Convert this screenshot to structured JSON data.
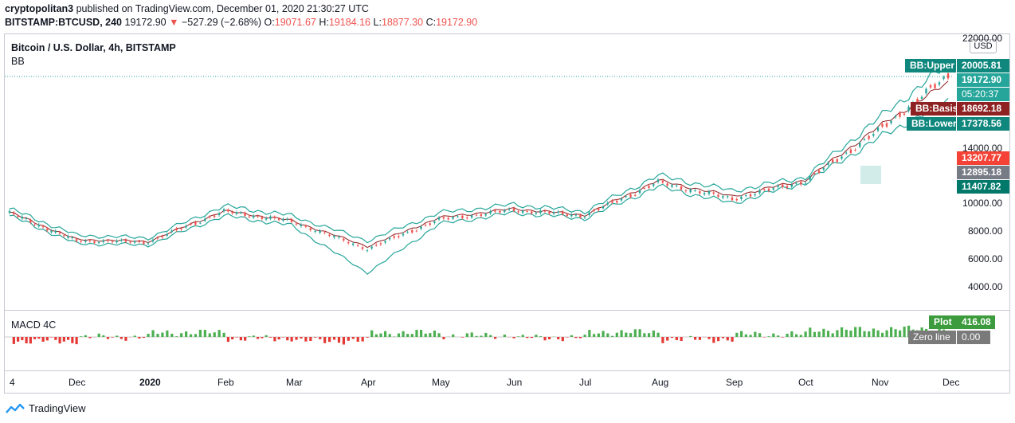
{
  "header": {
    "publisher": "cryptopolitan3",
    "published_text": "published on TradingView.com, December 01, 2020 21:30:27 UTC",
    "symbol": "BITSTAMP:BTCUSD, 240",
    "last_price": "19172.90",
    "change": "−527.29 (−2.68%)",
    "o_label": "O:",
    "o_value": "19071.67",
    "h_label": "H:",
    "h_value": "19184.16",
    "l_label": "L:",
    "l_value": "18877.30",
    "c_label": "C:",
    "c_value": "19172.90"
  },
  "legend": {
    "title": "Bitcoin / U.S. Dollar, 4h, BITSTAMP",
    "bb": "BB",
    "macd": "MACD 4C"
  },
  "price_axis": {
    "currency": "USD",
    "ticks": [
      "4000.00",
      "6000.00",
      "8000.00",
      "10000.00",
      "14000.00",
      "22000.00"
    ]
  },
  "tags": {
    "bb_upper_label": "BB:Upper",
    "bb_upper_value": "20005.81",
    "price_value": "19172.90",
    "countdown": "05:20:37",
    "bb_basis_label": "BB:Basis",
    "bb_basis_value": "18692.18",
    "bb_lower_label": "BB:Lower",
    "bb_lower_value": "17378.56",
    "level_high": "13207.77",
    "level_mid": "12895.18",
    "level_low": "11407.82",
    "plot_label": "Plot",
    "plot_value": "416.08",
    "zero_label": "Zero line",
    "zero_value": "0.00"
  },
  "time_axis": {
    "labels": [
      "4",
      "Dec",
      "2020",
      "Feb",
      "Mar",
      "Apr",
      "May",
      "Jun",
      "Jul",
      "Aug",
      "Sep",
      "Oct",
      "Nov",
      "Dec"
    ]
  },
  "footer": {
    "brand": "TradingView"
  },
  "colors": {
    "bb_band": "#26a69a",
    "bb_tag": "#0f877d",
    "basis": "#8e2222",
    "price_tag": "#26a69a",
    "down": "#ef5350",
    "up": "#26a69a",
    "level_red": "#f44336",
    "level_grey": "#777b86",
    "level_teal": "#00796b",
    "macd_green": "#4caf50",
    "macd_red": "#e53935",
    "plot_tag": "#3c9b3c",
    "zero_tag": "#7a7a7a"
  },
  "chart_data": {
    "type": "line",
    "title": "Bitcoin / U.S. Dollar, 4h, BITSTAMP",
    "ylabel": "USD",
    "ylim": [
      3000,
      22000
    ],
    "x": [
      "4",
      "Dec",
      "2020",
      "Feb",
      "Mar",
      "Apr",
      "May",
      "Jun",
      "Jul",
      "Aug",
      "Sep",
      "Oct",
      "Nov",
      "Dec"
    ],
    "series": [
      {
        "name": "BTCUSD",
        "values": [
          9300,
          7300,
          7200,
          9400,
          8700,
          6700,
          8800,
          9500,
          9100,
          11500,
          10300,
          11600,
          15200,
          19172.9
        ]
      },
      {
        "name": "BB:Upper",
        "values": [
          9600,
          7700,
          7500,
          9800,
          9100,
          7300,
          9300,
          9900,
          9400,
          12000,
          10900,
          11900,
          16100,
          20005.81
        ]
      },
      {
        "name": "BB:Basis",
        "values": [
          9350,
          7400,
          7250,
          9450,
          8750,
          6900,
          8950,
          9600,
          9150,
          11650,
          10500,
          11700,
          15500,
          18692.18
        ]
      },
      {
        "name": "BB:Lower",
        "values": [
          9100,
          7100,
          7000,
          9100,
          8400,
          5000,
          8500,
          9300,
          8900,
          11200,
          10000,
          11500,
          14700,
          17378.56
        ]
      }
    ],
    "macd_last": 416.08,
    "zero_line": 0.0
  }
}
